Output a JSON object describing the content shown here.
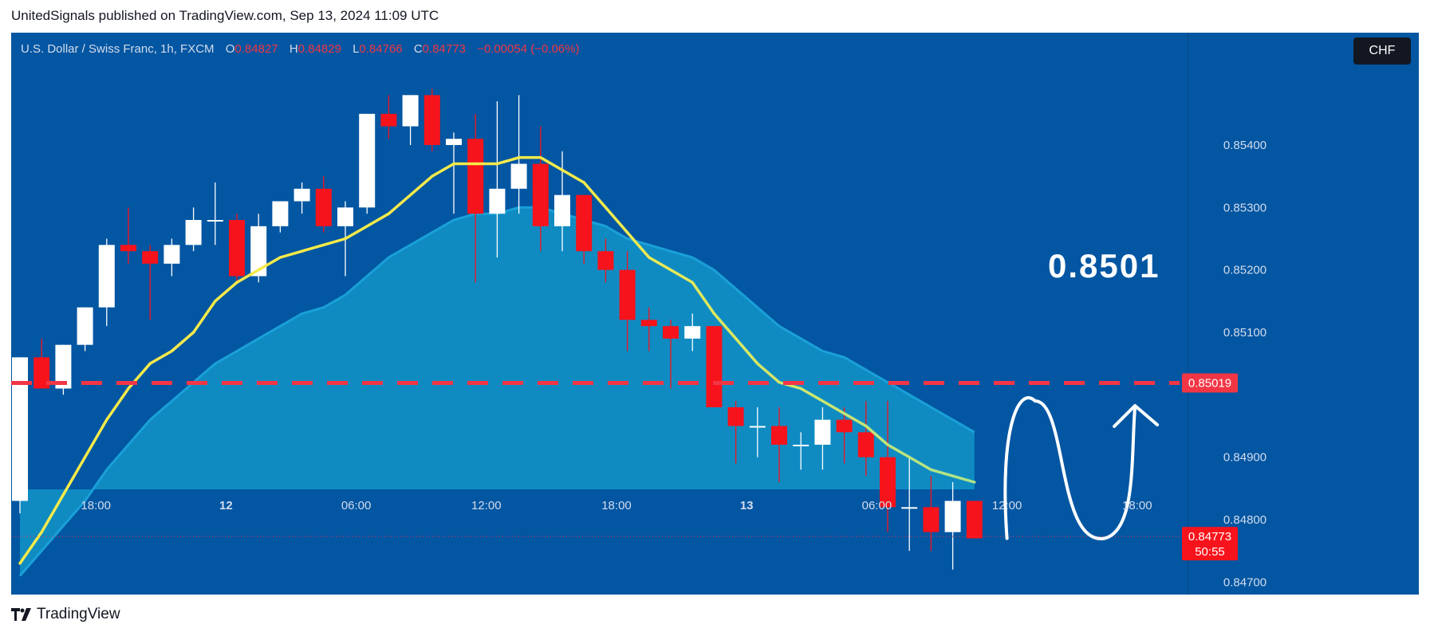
{
  "header": {
    "text": "UnitedSignals published on TradingView.com, Sep 13, 2024 11:09 UTC"
  },
  "legend": {
    "symbol": "U.S. Dollar / Swiss Franc, 1h, FXCM",
    "o_label": "O",
    "o_value": "0.84827",
    "h_label": "H",
    "h_value": "0.84829",
    "l_label": "L",
    "l_value": "0.84766",
    "c_label": "C",
    "c_value": "0.84773",
    "change": "−0.00054 (−0.06%)"
  },
  "currency_badge": "CHF",
  "footer": {
    "brand": "TradingView"
  },
  "colors": {
    "background": "#0256a2",
    "up": "#ffffff",
    "down": "#f7131b",
    "ma_fast": "#f5ea4a",
    "ma_slow_fill": "#0f8bc2",
    "target_line": "#f23645"
  },
  "chart_data": {
    "type": "candlestick",
    "ylim": [
      0.8468,
      0.8558
    ],
    "y_ticks": [
      "0.84700",
      "0.84800",
      "0.84900",
      "0.85100",
      "0.85200",
      "0.85300",
      "0.85400"
    ],
    "x_ticks": [
      {
        "label": "18:00",
        "index": 3.5,
        "bold": false
      },
      {
        "label": "12",
        "index": 9.5,
        "bold": true
      },
      {
        "label": "06:00",
        "index": 15.5,
        "bold": false
      },
      {
        "label": "12:00",
        "index": 21.5,
        "bold": false
      },
      {
        "label": "18:00",
        "index": 27.5,
        "bold": false
      },
      {
        "label": "13",
        "index": 33.5,
        "bold": true
      },
      {
        "label": "06:00",
        "index": 39.5,
        "bold": false
      },
      {
        "label": "12:00",
        "index": 45.5,
        "bold": false
      },
      {
        "label": "18:00",
        "index": 51.5,
        "bold": false
      }
    ],
    "candles": [
      [
        0.8483,
        0.8506,
        0.8481,
        0.8506
      ],
      [
        0.8506,
        0.8509,
        0.8501,
        0.8501
      ],
      [
        0.8501,
        0.8508,
        0.85,
        0.8508
      ],
      [
        0.8508,
        0.8514,
        0.8507,
        0.8514
      ],
      [
        0.8514,
        0.8525,
        0.8511,
        0.8524
      ],
      [
        0.8524,
        0.853,
        0.8521,
        0.8523
      ],
      [
        0.8523,
        0.8524,
        0.8512,
        0.8521
      ],
      [
        0.8521,
        0.8525,
        0.8519,
        0.8524
      ],
      [
        0.8524,
        0.853,
        0.8523,
        0.8528
      ],
      [
        0.8528,
        0.8534,
        0.8524,
        0.8528
      ],
      [
        0.8528,
        0.8529,
        0.8518,
        0.8519
      ],
      [
        0.8519,
        0.8529,
        0.8518,
        0.8527
      ],
      [
        0.8527,
        0.8531,
        0.8526,
        0.8531
      ],
      [
        0.8531,
        0.8534,
        0.8529,
        0.8533
      ],
      [
        0.8533,
        0.8535,
        0.8526,
        0.8527
      ],
      [
        0.8527,
        0.8531,
        0.8519,
        0.853
      ],
      [
        0.853,
        0.8545,
        0.8529,
        0.8545
      ],
      [
        0.8545,
        0.8548,
        0.8541,
        0.8543
      ],
      [
        0.8543,
        0.8548,
        0.854,
        0.8548
      ],
      [
        0.8548,
        0.8549,
        0.8539,
        0.854
      ],
      [
        0.854,
        0.8542,
        0.8529,
        0.8541
      ],
      [
        0.8541,
        0.8545,
        0.8518,
        0.8529
      ],
      [
        0.8529,
        0.8547,
        0.8522,
        0.8533
      ],
      [
        0.8533,
        0.8548,
        0.8529,
        0.8537
      ],
      [
        0.8537,
        0.8543,
        0.8523,
        0.8527
      ],
      [
        0.8527,
        0.8539,
        0.8523,
        0.8532
      ],
      [
        0.8532,
        0.8532,
        0.8521,
        0.8523
      ],
      [
        0.8523,
        0.8525,
        0.8518,
        0.852
      ],
      [
        0.852,
        0.8523,
        0.8507,
        0.8512
      ],
      [
        0.8512,
        0.8514,
        0.8507,
        0.8511
      ],
      [
        0.8511,
        0.8512,
        0.8501,
        0.8509
      ],
      [
        0.8509,
        0.8513,
        0.8507,
        0.8511
      ],
      [
        0.8511,
        0.8511,
        0.8498,
        0.8498
      ],
      [
        0.8498,
        0.8499,
        0.8489,
        0.8495
      ],
      [
        0.8495,
        0.8498,
        0.849,
        0.8495
      ],
      [
        0.8495,
        0.8498,
        0.8486,
        0.8492
      ],
      [
        0.8492,
        0.8494,
        0.8488,
        0.8492
      ],
      [
        0.8492,
        0.8498,
        0.8488,
        0.8496
      ],
      [
        0.8496,
        0.8498,
        0.8489,
        0.8494
      ],
      [
        0.8494,
        0.8499,
        0.8487,
        0.849
      ],
      [
        0.849,
        0.8499,
        0.8478,
        0.8482
      ],
      [
        0.8482,
        0.849,
        0.8475,
        0.8482
      ],
      [
        0.8482,
        0.8487,
        0.8475,
        0.8478
      ],
      [
        0.8478,
        0.8486,
        0.8472,
        0.8483
      ],
      [
        0.8483,
        0.8483,
        0.8477,
        0.8477
      ]
    ],
    "ma_fast": [
      0.8473,
      0.8478,
      0.8484,
      0.849,
      0.8496,
      0.8501,
      0.8505,
      0.8507,
      0.851,
      0.8515,
      0.8518,
      0.852,
      0.8522,
      0.8523,
      0.8524,
      0.8525,
      0.8527,
      0.8529,
      0.8532,
      0.8535,
      0.8537,
      0.8537,
      0.8537,
      0.8538,
      0.8538,
      0.8536,
      0.8534,
      0.853,
      0.8526,
      0.8522,
      0.852,
      0.8518,
      0.8513,
      0.8509,
      0.8505,
      0.8502,
      0.8501,
      0.8499,
      0.8497,
      0.8495,
      0.8492,
      0.849,
      0.8488,
      0.8487,
      0.8486
    ],
    "ma_slow": [
      0.8471,
      0.8475,
      0.8479,
      0.8483,
      0.8488,
      0.8492,
      0.8496,
      0.8499,
      0.8502,
      0.8505,
      0.8507,
      0.8509,
      0.8511,
      0.8513,
      0.8514,
      0.8516,
      0.8519,
      0.8522,
      0.8524,
      0.8526,
      0.8528,
      0.8529,
      0.8529,
      0.853,
      0.853,
      0.8529,
      0.8528,
      0.8527,
      0.8525,
      0.8524,
      0.8523,
      0.8522,
      0.852,
      0.8517,
      0.8514,
      0.8511,
      0.8509,
      0.8507,
      0.8506,
      0.8504,
      0.8502,
      0.85,
      0.8498,
      0.8496,
      0.8494
    ],
    "target_level": 0.85019,
    "target_label": "0.85019",
    "target_annotation": "0.8501",
    "current_price": 0.84773,
    "current_label": "0.84773",
    "countdown": "50:55",
    "projection": [
      [
        45.5,
        0.8477
      ],
      [
        46.8,
        0.8499
      ],
      [
        50,
        0.8477
      ],
      [
        51.4,
        0.8498
      ]
    ]
  }
}
